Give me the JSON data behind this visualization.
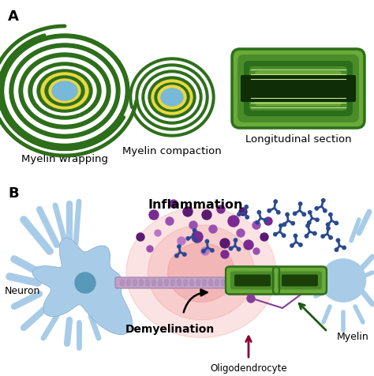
{
  "bg_color": "#ffffff",
  "dg": "#2d6e1a",
  "mg": "#4a8c2a",
  "lg": "#6aaa38",
  "pg": "#9acc60",
  "vpg": "#c8e898",
  "wh": "#ffffff",
  "yel": "#e8d840",
  "yel2": "#f0e870",
  "blue_ax": "#78b8d8",
  "blue_lgt": "#a8cce8",
  "blue_dp": "#5898b8",
  "neu_fill": "#a8cce8",
  "neu_edge": "#88aacc",
  "axon_fill": "#c0a0c8",
  "axon_edge": "#a080aa",
  "red1": "#f08080",
  "red2": "#e05050",
  "ab_blue": "#2a4a90",
  "ab_blue2": "#3a5aaa",
  "pur1": "#7a2a92",
  "pur2": "#5a1a72",
  "pur3": "#9a50b2",
  "pur4": "#b878c8",
  "arr_blk": "#111111",
  "arr_grn": "#1a5a10",
  "arr_red": "#8B0030",
  "oligo_pur": "#8a3a9a",
  "panel_a": "A",
  "panel_b": "B",
  "lbl_wrap": "Myelin wrapping",
  "lbl_comp": "Myelin compaction",
  "lbl_long": "Longitudinal section",
  "lbl_infl": "Inflammation",
  "lbl_neur": "Neuron",
  "lbl_demy": "Demyelination",
  "lbl_olig": "Oligodendrocyte",
  "lbl_myel": "Myelin"
}
